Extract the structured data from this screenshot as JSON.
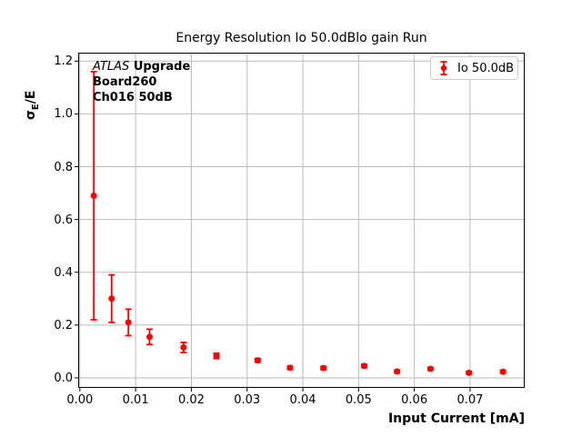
{
  "colors": {
    "accent": "#ff0000",
    "grid": "#bbbbbb",
    "spine": "#000000",
    "legend_border": "#cccccc",
    "text": "#000000",
    "background": "#ffffff"
  },
  "chart_data": {
    "type": "scatter",
    "title": "Energy Resolution Io 50.0dBlo gain Run",
    "xlabel": "Input Current [mA]",
    "ylabel": "σ_E/E",
    "ylabel_parts": {
      "base": "σ",
      "subscript": "E",
      "suffix": "/E"
    },
    "xlim": [
      -0.0003,
      0.0798
    ],
    "ylim": [
      -0.038,
      1.232
    ],
    "xticks": [
      0,
      0.01,
      0.02,
      0.03,
      0.04,
      0.05,
      0.06,
      0.07
    ],
    "xtick_labels": [
      "0.00",
      "0.01",
      "0.02",
      "0.03",
      "0.04",
      "0.05",
      "0.06",
      "0.07"
    ],
    "yticks": [
      0,
      0.2,
      0.4,
      0.6,
      0.8,
      1.0,
      1.2
    ],
    "ytick_labels": [
      "0.0",
      "0.2",
      "0.4",
      "0.6",
      "0.8",
      "1.0",
      "1.2"
    ],
    "grid": true,
    "legend_position": "upper right",
    "annotation": {
      "line1_italic": "ATLAS",
      "line1_bold": "Upgrade",
      "line2": "Board260",
      "line3": "Ch016 50dB"
    },
    "series": [
      {
        "name": "Io 50.0dB",
        "marker": "o",
        "color": "#ff0000",
        "x": [
          0.0025,
          0.0057,
          0.0087,
          0.0125,
          0.0186,
          0.0245,
          0.0319,
          0.0377,
          0.0437,
          0.051,
          0.0569,
          0.0629,
          0.0698,
          0.0759
        ],
        "y": [
          0.69,
          0.3,
          0.21,
          0.155,
          0.115,
          0.083,
          0.066,
          0.038,
          0.037,
          0.045,
          0.024,
          0.034,
          0.019,
          0.023
        ],
        "yerr": [
          0.47,
          0.09,
          0.05,
          0.029,
          0.019,
          0.01,
          0.007,
          0.006,
          0.006,
          0.006,
          0.005,
          0.005,
          0.005,
          0.005
        ]
      }
    ]
  }
}
